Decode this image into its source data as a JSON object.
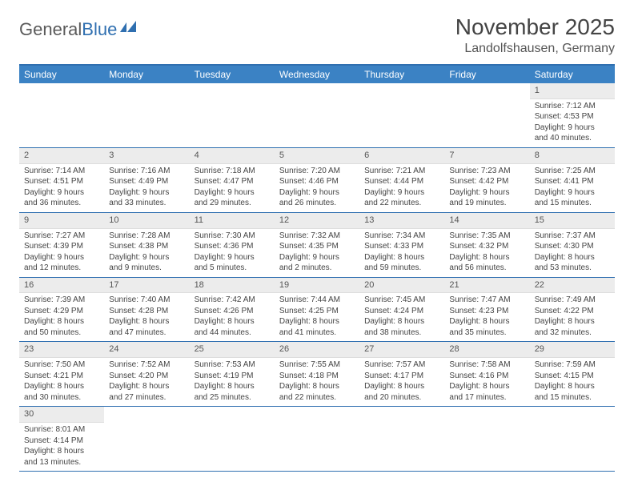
{
  "logo": {
    "text1": "General",
    "text2": "Blue"
  },
  "title": "November 2025",
  "location": "Landolfshausen, Germany",
  "colors": {
    "header_bar": "#3b82c4",
    "border": "#2f6fb0",
    "day_header_bg": "#ececec",
    "text": "#444444"
  },
  "weekdays": [
    "Sunday",
    "Monday",
    "Tuesday",
    "Wednesday",
    "Thursday",
    "Friday",
    "Saturday"
  ],
  "weeks": [
    [
      null,
      null,
      null,
      null,
      null,
      null,
      {
        "n": "1",
        "sr": "7:12 AM",
        "ss": "4:53 PM",
        "dl": "9 hours and 40 minutes."
      }
    ],
    [
      {
        "n": "2",
        "sr": "7:14 AM",
        "ss": "4:51 PM",
        "dl": "9 hours and 36 minutes."
      },
      {
        "n": "3",
        "sr": "7:16 AM",
        "ss": "4:49 PM",
        "dl": "9 hours and 33 minutes."
      },
      {
        "n": "4",
        "sr": "7:18 AM",
        "ss": "4:47 PM",
        "dl": "9 hours and 29 minutes."
      },
      {
        "n": "5",
        "sr": "7:20 AM",
        "ss": "4:46 PM",
        "dl": "9 hours and 26 minutes."
      },
      {
        "n": "6",
        "sr": "7:21 AM",
        "ss": "4:44 PM",
        "dl": "9 hours and 22 minutes."
      },
      {
        "n": "7",
        "sr": "7:23 AM",
        "ss": "4:42 PM",
        "dl": "9 hours and 19 minutes."
      },
      {
        "n": "8",
        "sr": "7:25 AM",
        "ss": "4:41 PM",
        "dl": "9 hours and 15 minutes."
      }
    ],
    [
      {
        "n": "9",
        "sr": "7:27 AM",
        "ss": "4:39 PM",
        "dl": "9 hours and 12 minutes."
      },
      {
        "n": "10",
        "sr": "7:28 AM",
        "ss": "4:38 PM",
        "dl": "9 hours and 9 minutes."
      },
      {
        "n": "11",
        "sr": "7:30 AM",
        "ss": "4:36 PM",
        "dl": "9 hours and 5 minutes."
      },
      {
        "n": "12",
        "sr": "7:32 AM",
        "ss": "4:35 PM",
        "dl": "9 hours and 2 minutes."
      },
      {
        "n": "13",
        "sr": "7:34 AM",
        "ss": "4:33 PM",
        "dl": "8 hours and 59 minutes."
      },
      {
        "n": "14",
        "sr": "7:35 AM",
        "ss": "4:32 PM",
        "dl": "8 hours and 56 minutes."
      },
      {
        "n": "15",
        "sr": "7:37 AM",
        "ss": "4:30 PM",
        "dl": "8 hours and 53 minutes."
      }
    ],
    [
      {
        "n": "16",
        "sr": "7:39 AM",
        "ss": "4:29 PM",
        "dl": "8 hours and 50 minutes."
      },
      {
        "n": "17",
        "sr": "7:40 AM",
        "ss": "4:28 PM",
        "dl": "8 hours and 47 minutes."
      },
      {
        "n": "18",
        "sr": "7:42 AM",
        "ss": "4:26 PM",
        "dl": "8 hours and 44 minutes."
      },
      {
        "n": "19",
        "sr": "7:44 AM",
        "ss": "4:25 PM",
        "dl": "8 hours and 41 minutes."
      },
      {
        "n": "20",
        "sr": "7:45 AM",
        "ss": "4:24 PM",
        "dl": "8 hours and 38 minutes."
      },
      {
        "n": "21",
        "sr": "7:47 AM",
        "ss": "4:23 PM",
        "dl": "8 hours and 35 minutes."
      },
      {
        "n": "22",
        "sr": "7:49 AM",
        "ss": "4:22 PM",
        "dl": "8 hours and 32 minutes."
      }
    ],
    [
      {
        "n": "23",
        "sr": "7:50 AM",
        "ss": "4:21 PM",
        "dl": "8 hours and 30 minutes."
      },
      {
        "n": "24",
        "sr": "7:52 AM",
        "ss": "4:20 PM",
        "dl": "8 hours and 27 minutes."
      },
      {
        "n": "25",
        "sr": "7:53 AM",
        "ss": "4:19 PM",
        "dl": "8 hours and 25 minutes."
      },
      {
        "n": "26",
        "sr": "7:55 AM",
        "ss": "4:18 PM",
        "dl": "8 hours and 22 minutes."
      },
      {
        "n": "27",
        "sr": "7:57 AM",
        "ss": "4:17 PM",
        "dl": "8 hours and 20 minutes."
      },
      {
        "n": "28",
        "sr": "7:58 AM",
        "ss": "4:16 PM",
        "dl": "8 hours and 17 minutes."
      },
      {
        "n": "29",
        "sr": "7:59 AM",
        "ss": "4:15 PM",
        "dl": "8 hours and 15 minutes."
      }
    ],
    [
      {
        "n": "30",
        "sr": "8:01 AM",
        "ss": "4:14 PM",
        "dl": "8 hours and 13 minutes."
      },
      null,
      null,
      null,
      null,
      null,
      null
    ]
  ],
  "labels": {
    "sunrise": "Sunrise:",
    "sunset": "Sunset:",
    "daylight": "Daylight:"
  }
}
